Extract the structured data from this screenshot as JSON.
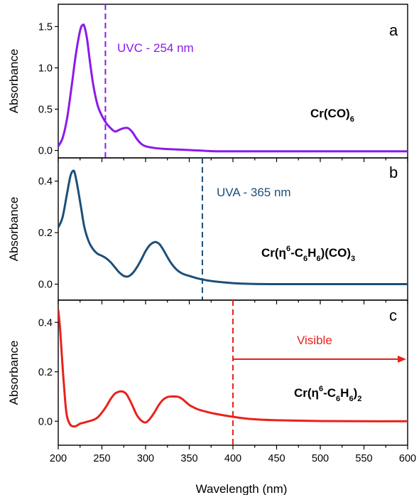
{
  "chart_data": [
    {
      "type": "line",
      "panel_label": "a",
      "ylabel": "Absorbance",
      "xlim": [
        200,
        600
      ],
      "ylim": [
        -0.09,
        1.77
      ],
      "yticks": [
        0.0,
        0.5,
        1.0,
        1.5
      ],
      "ytick_labels": [
        "0.0",
        "0.5",
        "1.0",
        "1.5"
      ],
      "color": "#8B1AEB",
      "series": [
        {
          "name": "Cr(CO)6",
          "x": [
            200,
            205,
            210,
            215,
            220,
            225,
            228,
            230,
            233,
            236,
            240,
            245,
            250,
            255,
            260,
            265,
            270,
            275,
            280,
            285,
            290,
            295,
            300,
            310,
            320,
            340,
            360,
            380,
            400,
            450,
            500,
            550,
            600
          ],
          "y": [
            0.05,
            0.15,
            0.38,
            0.75,
            1.15,
            1.45,
            1.52,
            1.5,
            1.35,
            1.1,
            0.8,
            0.55,
            0.42,
            0.33,
            0.27,
            0.23,
            0.25,
            0.27,
            0.27,
            0.22,
            0.14,
            0.08,
            0.05,
            0.03,
            0.02,
            0.01,
            0.0,
            -0.01,
            -0.01,
            -0.01,
            -0.01,
            -0.01,
            -0.01
          ]
        }
      ],
      "compound_label": {
        "main": "Cr(CO)",
        "sub": "6"
      },
      "marker": {
        "x": 254,
        "label": "UVC - 254 nm"
      }
    },
    {
      "type": "line",
      "panel_label": "b",
      "ylabel": "Absorbance",
      "xlim": [
        200,
        600
      ],
      "ylim": [
        -0.062,
        0.49
      ],
      "yticks": [
        0.0,
        0.2,
        0.4
      ],
      "ytick_labels": [
        "0.0",
        "0.2",
        "0.4"
      ],
      "color": "#1C4F79",
      "series": [
        {
          "name": "Cr(η6-C6H6)(CO)3",
          "x": [
            200,
            205,
            210,
            214,
            217,
            219,
            222,
            226,
            230,
            235,
            240,
            245,
            250,
            255,
            260,
            265,
            270,
            275,
            280,
            285,
            290,
            295,
            300,
            305,
            310,
            313,
            316,
            320,
            325,
            330,
            335,
            340,
            345,
            350,
            360,
            370,
            380,
            400,
            420,
            450,
            500,
            550,
            600
          ],
          "y": [
            0.22,
            0.26,
            0.35,
            0.42,
            0.44,
            0.43,
            0.38,
            0.3,
            0.22,
            0.165,
            0.135,
            0.118,
            0.11,
            0.1,
            0.085,
            0.065,
            0.045,
            0.032,
            0.03,
            0.042,
            0.065,
            0.095,
            0.128,
            0.152,
            0.163,
            0.162,
            0.155,
            0.135,
            0.105,
            0.078,
            0.058,
            0.045,
            0.037,
            0.032,
            0.022,
            0.015,
            0.01,
            0.004,
            0.001,
            0.0,
            0.0,
            0.0,
            0.0
          ]
        }
      ],
      "compound_label": {
        "parts": [
          "Cr(η",
          "6",
          "-C",
          "6",
          "H",
          "6",
          ")(CO)",
          "3"
        ]
      },
      "marker": {
        "x": 365,
        "label": "UVA - 365 nm"
      }
    },
    {
      "type": "line",
      "panel_label": "c",
      "ylabel": "Absorbance",
      "xlabel": "Wavelength (nm)",
      "xlim": [
        200,
        600
      ],
      "ylim": [
        -0.097,
        0.49
      ],
      "yticks": [
        0.0,
        0.2,
        0.4
      ],
      "ytick_labels": [
        "0.0",
        "0.2",
        "0.4"
      ],
      "xticks": [
        200,
        250,
        300,
        350,
        400,
        450,
        500,
        550,
        600
      ],
      "xtick_labels": [
        "200",
        "250",
        "300",
        "350",
        "400",
        "450",
        "500",
        "550",
        "600"
      ],
      "color": "#E8221C",
      "series": [
        {
          "name": "Cr(η6-C6H6)2",
          "x": [
            200,
            202,
            205,
            208,
            210,
            213,
            216,
            220,
            225,
            230,
            235,
            240,
            245,
            250,
            255,
            260,
            265,
            270,
            274,
            278,
            282,
            286,
            290,
            295,
            300,
            305,
            310,
            315,
            320,
            325,
            330,
            335,
            338,
            342,
            346,
            350,
            355,
            360,
            370,
            380,
            400,
            420,
            450,
            500,
            550,
            600
          ],
          "y": [
            0.45,
            0.38,
            0.22,
            0.08,
            0.02,
            -0.01,
            -0.02,
            -0.02,
            -0.01,
            -0.005,
            0.0,
            0.005,
            0.015,
            0.035,
            0.06,
            0.09,
            0.112,
            0.12,
            0.12,
            0.11,
            0.085,
            0.055,
            0.025,
            0.003,
            -0.005,
            0.01,
            0.035,
            0.065,
            0.087,
            0.098,
            0.1,
            0.1,
            0.098,
            0.09,
            0.078,
            0.066,
            0.056,
            0.048,
            0.038,
            0.03,
            0.018,
            0.009,
            0.004,
            0.001,
            0.0,
            0.0
          ]
        }
      ],
      "compound_label": {
        "parts": [
          "Cr(η",
          "6",
          "-C",
          "6",
          "H",
          "6",
          ")",
          "2"
        ]
      },
      "marker": {
        "x": 400,
        "label": "Visible",
        "arrow_to": 600
      }
    }
  ]
}
